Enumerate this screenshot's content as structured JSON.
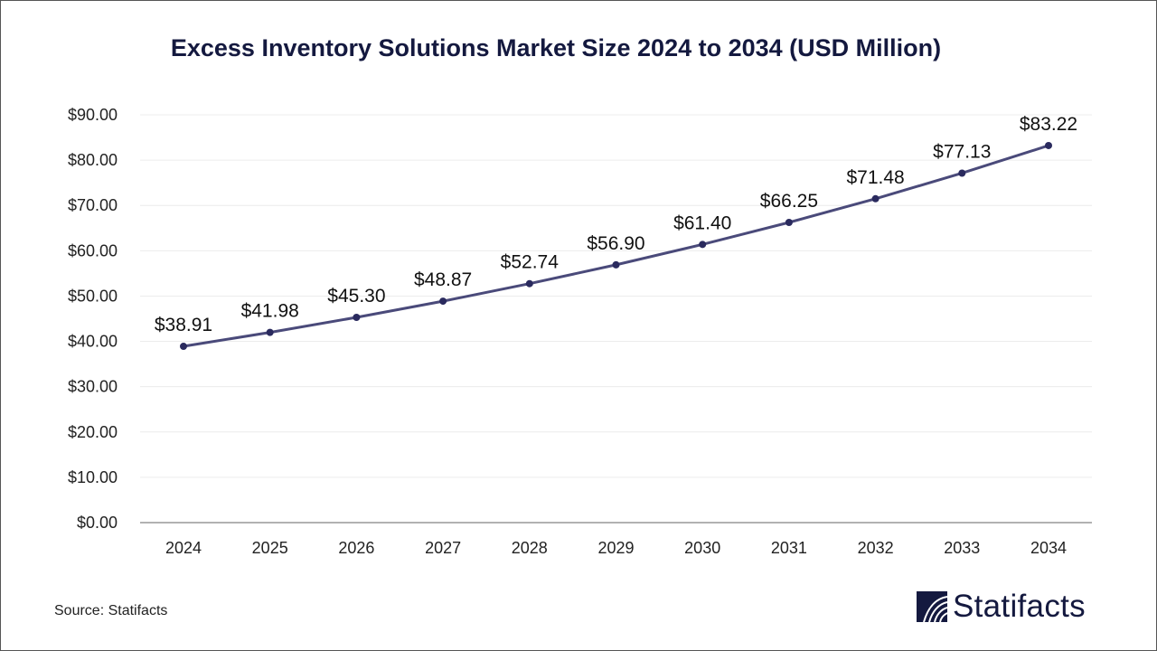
{
  "chart_data": {
    "type": "line",
    "title": "Excess Inventory Solutions Market Size 2024 to 2034 (USD Million)",
    "categories": [
      "2024",
      "2025",
      "2026",
      "2027",
      "2028",
      "2029",
      "2030",
      "2031",
      "2032",
      "2033",
      "2034"
    ],
    "values": [
      38.91,
      41.98,
      45.3,
      48.87,
      52.74,
      56.9,
      61.4,
      66.25,
      71.48,
      77.13,
      83.22
    ],
    "data_labels": [
      "$38.91",
      "$41.98",
      "$45.30",
      "$48.87",
      "$52.74",
      "$56.90",
      "$61.40",
      "$66.25",
      "$71.48",
      "$77.13",
      "$83.22"
    ],
    "yticks": [
      "$0.00",
      "$10.00",
      "$20.00",
      "$30.00",
      "$40.00",
      "$50.00",
      "$60.00",
      "$70.00",
      "$80.00",
      "$90.00"
    ],
    "ylim": [
      0,
      90
    ],
    "grid": true,
    "line_color": "#4a4a7a",
    "marker_color": "#2a2a5e"
  },
  "source": "Source: Statifacts",
  "logo": {
    "text": "Statifacts",
    "color": "#14193f"
  }
}
